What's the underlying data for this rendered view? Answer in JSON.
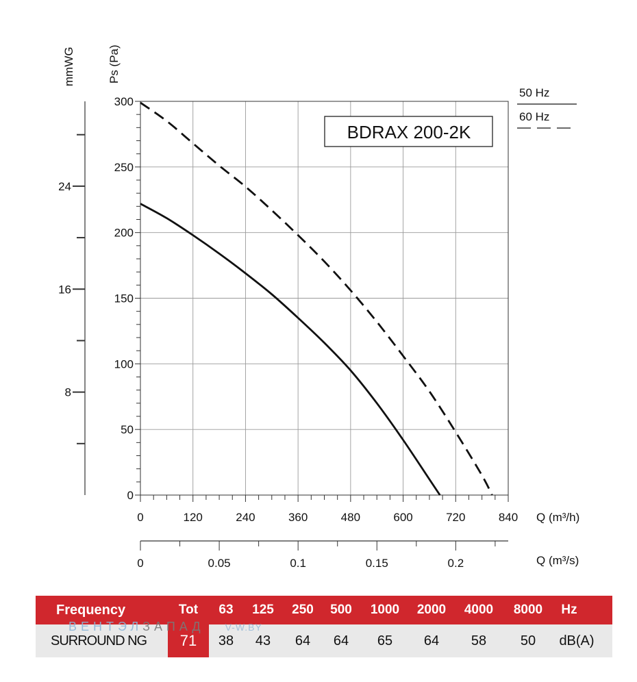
{
  "chart_data": {
    "type": "line",
    "title": "BDRAX  200-2K",
    "xlabel": "Q (m³/h)",
    "x2label": "Q (m³/s)",
    "ylabel": "Ps (Pa)",
    "y2label": "mmWG",
    "xlim": [
      0,
      840
    ],
    "ylim": [
      0,
      300
    ],
    "x_ticks": [
      0,
      120,
      240,
      360,
      480,
      600,
      720,
      840
    ],
    "y_ticks": [
      0,
      50,
      100,
      150,
      200,
      250,
      300
    ],
    "x2_ticks": [
      {
        "value": 0,
        "label": "0"
      },
      {
        "value": 0.05,
        "label": "0.05"
      },
      {
        "value": 0.1,
        "label": "0.1"
      },
      {
        "value": 0.15,
        "label": "0.15"
      },
      {
        "value": 0.2,
        "label": "0.2"
      }
    ],
    "x2_range_max": 0.2333,
    "y2_ticks": [
      {
        "value": 8,
        "label": "8"
      },
      {
        "value": 16,
        "label": "16"
      },
      {
        "value": 24,
        "label": "24"
      }
    ],
    "y2_minor_ticks": [
      4,
      12,
      20,
      28
    ],
    "y2_factor": 9.80665,
    "grid": true,
    "legend": {
      "position": "top-right",
      "entries": [
        {
          "label": "50 Hz",
          "style": "solid"
        },
        {
          "label": "60 Hz",
          "style": "dashed"
        }
      ]
    },
    "series": [
      {
        "name": "50 Hz",
        "style": "solid",
        "x": [
          0,
          60,
          120,
          180,
          240,
          300,
          360,
          420,
          480,
          540,
          600,
          660,
          684
        ],
        "y": [
          222,
          211,
          198,
          184,
          169,
          153,
          135,
          116,
          95,
          70,
          42,
          12,
          0
        ]
      },
      {
        "name": "60 Hz",
        "style": "dashed",
        "x": [
          0,
          60,
          120,
          180,
          240,
          300,
          360,
          420,
          480,
          540,
          600,
          660,
          720,
          780,
          803
        ],
        "y": [
          299,
          285,
          268,
          251,
          235,
          217,
          198,
          178,
          156,
          132,
          106,
          79,
          48,
          15,
          0
        ]
      }
    ]
  },
  "sound_table": {
    "freq_label": "Frequency",
    "headers": [
      "Tot",
      "63",
      "125",
      "250",
      "500",
      "1000",
      "2000",
      "4000",
      "8000"
    ],
    "unit_header": "Hz",
    "row_label": "SURROUND NG",
    "values": [
      "71",
      "38",
      "43",
      "64",
      "64",
      "65",
      "64",
      "58",
      "50"
    ],
    "unit_row": "dB(A)"
  },
  "watermark": {
    "part1": "ВЕНТЭЛ",
    "part2": "ЗАПАД",
    "part3": "V-W.BY"
  }
}
